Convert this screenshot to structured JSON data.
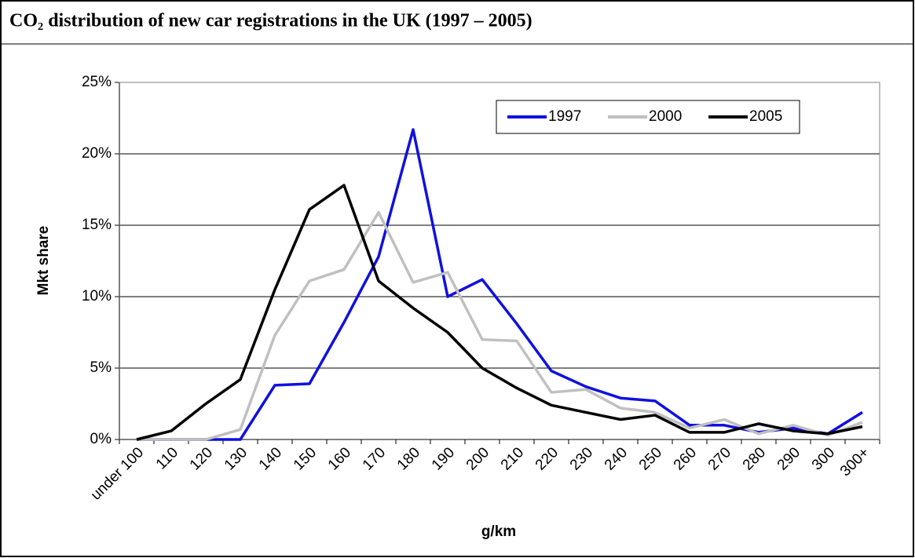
{
  "chart_data": {
    "type": "line",
    "title": "CO₂ distribution of new car registrations in the UK (1997 – 2005)",
    "x_label": "g/km",
    "y_label": "Mkt share",
    "categories": [
      "under 100",
      "110",
      "120",
      "130",
      "140",
      "150",
      "160",
      "170",
      "180",
      "190",
      "200",
      "210",
      "220",
      "230",
      "240",
      "250",
      "260",
      "270",
      "280",
      "290",
      "300",
      "300+"
    ],
    "series": [
      {
        "name": "1997",
        "color": "#1010e0",
        "values": [
          0,
          0,
          0,
          0,
          3.8,
          3.9,
          8.2,
          12.8,
          21.7,
          10,
          11.2,
          8.1,
          4.8,
          3.7,
          2.9,
          2.7,
          1.0,
          1.0,
          0.5,
          0.8,
          0.4,
          1.9
        ]
      },
      {
        "name": "2000",
        "color": "#c0c0c0",
        "values": [
          0,
          0,
          0,
          0.7,
          7.3,
          11.1,
          11.9,
          15.9,
          11,
          11.7,
          7,
          6.9,
          3.3,
          3.5,
          2.2,
          1.9,
          0.8,
          1.4,
          0.4,
          1.0,
          0.3,
          1.2
        ]
      },
      {
        "name": "2005",
        "color": "#000000",
        "values": [
          0,
          0.6,
          2.5,
          4.2,
          10.5,
          16.1,
          17.8,
          11.1,
          9.2,
          7.5,
          5.0,
          3.6,
          2.4,
          1.9,
          1.4,
          1.7,
          0.5,
          0.5,
          1.1,
          0.6,
          0.4,
          0.9
        ]
      }
    ],
    "ylim": [
      0,
      25
    ],
    "yticks": [
      {
        "value": 0,
        "label": "0%"
      },
      {
        "value": 5,
        "label": "5%"
      },
      {
        "value": 10,
        "label": "10%"
      },
      {
        "value": 15,
        "label": "15%"
      },
      {
        "value": 20,
        "label": "20%"
      },
      {
        "value": 25,
        "label": "25%"
      }
    ],
    "grid": true,
    "legend": "top-right"
  }
}
